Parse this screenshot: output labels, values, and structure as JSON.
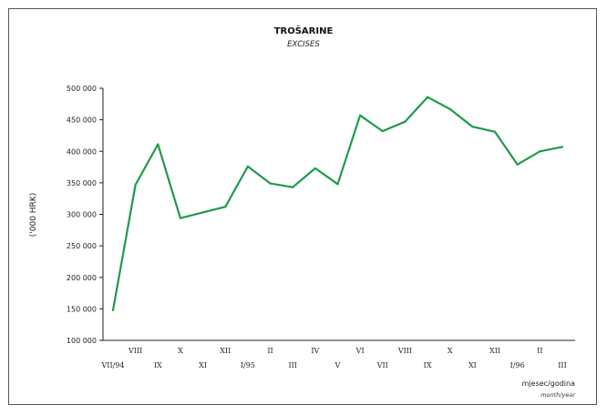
{
  "chart_data": {
    "type": "line",
    "title": "TROŠARINE",
    "subtitle": "EXCISES",
    "ylabel": "('000 HRK)",
    "xlabel": "mjesec/godina",
    "xlabel_sub": "month/year",
    "ylim": [
      100000,
      500000
    ],
    "yticks": [
      "100 000",
      "150 000",
      "200 000",
      "250 000",
      "300 000",
      "350 000",
      "400 000",
      "450 000",
      "500 000"
    ],
    "ytick_values": [
      100000,
      150000,
      200000,
      250000,
      300000,
      350000,
      400000,
      450000,
      500000
    ],
    "grid": false,
    "categories": [
      "VII/94",
      "VIII",
      "IX",
      "X",
      "XI",
      "XII",
      "I/95",
      "II",
      "III",
      "IV",
      "V",
      "VI",
      "VII",
      "VIII",
      "IX",
      "X",
      "XI",
      "XII",
      "I/96",
      "II",
      "III"
    ],
    "series": [
      {
        "values": [
          148000,
          347000,
          411000,
          294000,
          303000,
          312000,
          376000,
          349000,
          343000,
          373000,
          348000,
          457000,
          432000,
          447000,
          486000,
          467000,
          439000,
          431000,
          379000,
          400000,
          407000
        ],
        "color": "#1f9a4b"
      }
    ]
  }
}
